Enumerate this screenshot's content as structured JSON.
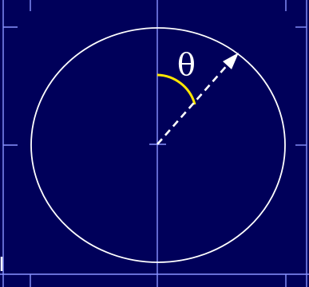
{
  "diagram": {
    "angle_label": "θ",
    "colors": {
      "background": "#00005a",
      "grid_lines": "#8a94ff",
      "circle": "#ffffff",
      "radius_arrow": "#ffffff",
      "angle_arc": "#ffe600",
      "label": "#ffffff"
    }
  }
}
